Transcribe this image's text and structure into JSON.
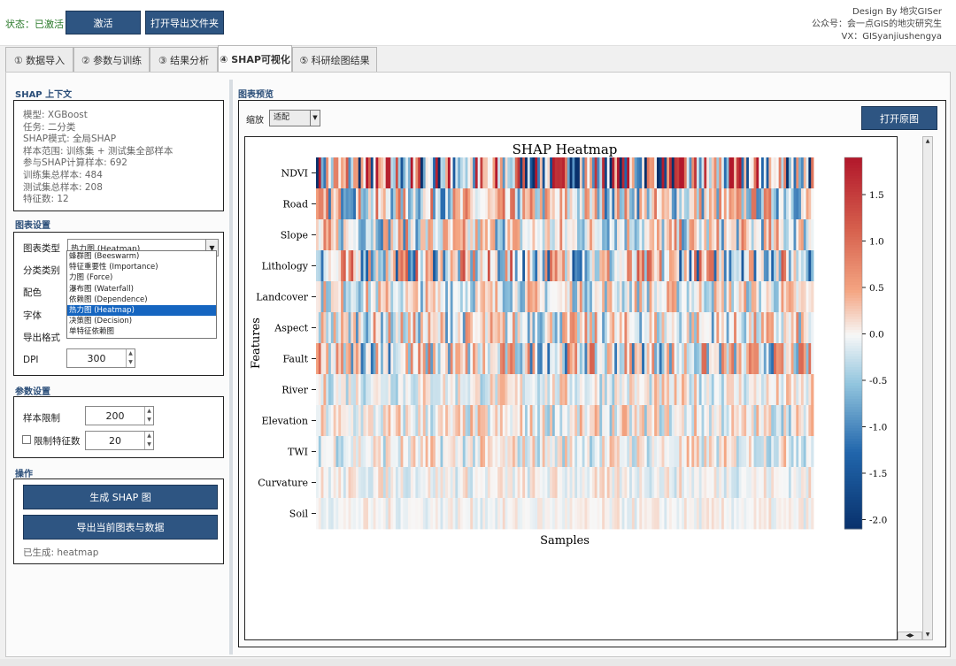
{
  "topbar": {
    "status_label": "状态：已激活",
    "activate_button": "激活",
    "open_export_button": "打开导出文件夹",
    "credit_line1": "Design By 地灾GISer",
    "credit_line2": "公众号：会一点GIS的地灾研究生",
    "credit_line3": "VX：GISyanjiushengya"
  },
  "tabs": [
    {
      "label": "① 数据导入"
    },
    {
      "label": "② 参数与训练"
    },
    {
      "label": "③ 结果分析"
    },
    {
      "label": "④ SHAP可视化"
    },
    {
      "label": "⑤ 科研绘图结果"
    }
  ],
  "shap_context": {
    "title": "SHAP 上下文",
    "lines": [
      "模型: XGBoost",
      "任务: 二分类",
      "SHAP模式: 全局SHAP",
      "样本范围: 训练集 + 测试集全部样本",
      "参与SHAP计算样本: 692",
      "训练集总样本: 484",
      "测试集总样本: 208",
      "特征数: 12"
    ]
  },
  "chart_settings": {
    "title": "图表设置",
    "chart_type_label": "图表类型",
    "chart_type_value": "热力图 (Heatmap)",
    "category_label": "分类类别",
    "color_label": "配色",
    "font_label": "字体",
    "export_format_label": "导出格式",
    "dpi_label": "DPI",
    "dpi_value": "300",
    "dropdown_options": [
      "蜂群图 (Beeswarm)",
      "特征重要性 (Importance)",
      "力图 (Force)",
      "瀑布图 (Waterfall)",
      "依赖图 (Dependence)",
      "热力图 (Heatmap)",
      "决策图 (Decision)",
      "单特征依赖图"
    ],
    "selected_option": "热力图 (Heatmap)"
  },
  "params": {
    "title": "参数设置",
    "sample_limit_label": "样本限制",
    "sample_limit_value": "200",
    "feature_limit_label": "限制特征数",
    "feature_limit_checked": false,
    "feature_limit_value": "20"
  },
  "actions": {
    "title": "操作",
    "generate_button": "生成 SHAP 图",
    "export_button": "导出当前图表与数据",
    "status_text": "已生成: heatmap"
  },
  "preview": {
    "title": "图表预览",
    "zoom_label": "缩放",
    "zoom_value": "适配",
    "open_original_button": "打开原图"
  },
  "chart_data": {
    "type": "heatmap",
    "title": "SHAP Heatmap",
    "xlabel": "Samples",
    "ylabel": "Features",
    "features": [
      "NDVI",
      "Road",
      "Slope",
      "Lithology",
      "Landcover",
      "Aspect",
      "Fault",
      "River",
      "Elevation",
      "TWI",
      "Curvature",
      "Soil"
    ],
    "feature_intensity": [
      1.0,
      0.45,
      0.4,
      0.55,
      0.3,
      0.35,
      0.45,
      0.2,
      0.22,
      0.2,
      0.12,
      0.08
    ],
    "n_samples": 200,
    "colorbar_ticks": [
      "1.5",
      "1.0",
      "0.5",
      "0.0",
      "-0.5",
      "-1.0",
      "-1.5",
      "-2.0"
    ],
    "colorbar_range": [
      -2.1,
      1.9
    ],
    "colormap": "RdBu_r",
    "colors": {
      "high": "#b2182b",
      "mid": "#f7f7f7",
      "low": "#08306b"
    }
  }
}
